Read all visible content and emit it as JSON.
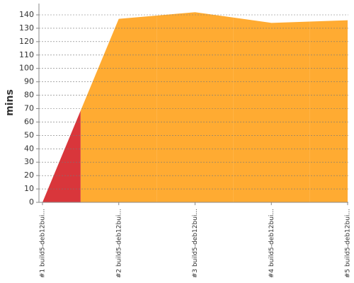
{
  "chart_data": {
    "type": "area",
    "y_label": "mins",
    "categories": [
      "#1 build5-deb12bui...",
      "#2 build5-deb12bui...",
      "#3 build5-deb12bui...",
      "#4 build5-deb12bui...",
      "#5 build5-deb12bui..."
    ],
    "values": [
      0,
      137,
      142,
      134,
      136
    ],
    "point_colors": [
      "#d9363b",
      "#ffab32",
      "#ffab32",
      "#ffab32",
      "#ffab32"
    ],
    "ylim": [
      0,
      140
    ],
    "yticks": [
      0,
      10,
      20,
      30,
      40,
      50,
      60,
      70,
      80,
      90,
      100,
      110,
      120,
      130,
      140
    ],
    "grid": true
  }
}
